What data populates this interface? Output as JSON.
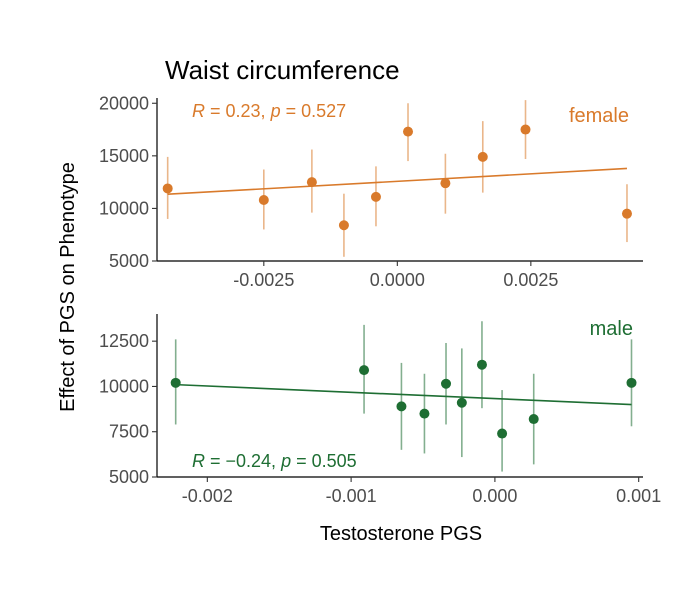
{
  "chart_data": {
    "type": "scatter",
    "title": "Waist circumference",
    "xlabel": "Testosterone PGS",
    "ylabel": "Effect of PGS on Phenotype",
    "panels": [
      {
        "name": "female",
        "color": "#d97a2b",
        "stat": {
          "r_prefix": "R",
          "r_text": " = 0.23, ",
          "p_prefix": "p",
          "p_text": " = 0.527"
        },
        "xlim": [
          -0.0045,
          0.0046
        ],
        "ylim": [
          5000,
          20500
        ],
        "xticks": [
          -0.0025,
          0.0,
          0.0025
        ],
        "xtick_labels": [
          "-0.0025",
          "0.0000",
          "0.0025"
        ],
        "yticks": [
          5000,
          10000,
          15000,
          20000
        ],
        "ytick_labels": [
          "5000",
          "10000",
          "15000",
          "20000"
        ],
        "points": [
          {
            "x": -0.0043,
            "y": 11900,
            "lo": 9000,
            "hi": 14900
          },
          {
            "x": -0.0025,
            "y": 10800,
            "lo": 8000,
            "hi": 13700
          },
          {
            "x": -0.0016,
            "y": 12500,
            "lo": 9600,
            "hi": 15600
          },
          {
            "x": -0.001,
            "y": 8400,
            "lo": 5400,
            "hi": 11400
          },
          {
            "x": -0.0004,
            "y": 11100,
            "lo": 8300,
            "hi": 14000
          },
          {
            "x": 0.0002,
            "y": 17300,
            "lo": 14500,
            "hi": 20000
          },
          {
            "x": 0.0009,
            "y": 12400,
            "lo": 9500,
            "hi": 15200
          },
          {
            "x": 0.0016,
            "y": 14900,
            "lo": 11500,
            "hi": 18300
          },
          {
            "x": 0.0024,
            "y": 17500,
            "lo": 14700,
            "hi": 20300
          },
          {
            "x": 0.0043,
            "y": 9500,
            "lo": 6800,
            "hi": 12300
          }
        ],
        "fit": {
          "x": [
            -0.0043,
            0.0043
          ],
          "y": [
            11350,
            13800
          ]
        }
      },
      {
        "name": "male",
        "color": "#1e6e33",
        "stat": {
          "r_prefix": "R",
          "r_text": " = −0.24, ",
          "p_prefix": "p",
          "p_text": " = 0.505"
        },
        "xlim": [
          -0.00235,
          0.00103
        ],
        "ylim": [
          5000,
          14000
        ],
        "xticks": [
          -0.002,
          -0.001,
          0.0,
          0.001
        ],
        "xtick_labels": [
          "-0.002",
          "-0.001",
          "0.000",
          "0.001"
        ],
        "yticks": [
          5000,
          7500,
          10000,
          12500
        ],
        "ytick_labels": [
          "5000",
          "7500",
          "10000",
          "12500"
        ],
        "points": [
          {
            "x": -0.00222,
            "y": 10200,
            "lo": 7900,
            "hi": 12600
          },
          {
            "x": -0.00091,
            "y": 10900,
            "lo": 8500,
            "hi": 13400
          },
          {
            "x": -0.00065,
            "y": 8900,
            "lo": 6500,
            "hi": 11300
          },
          {
            "x": -0.00049,
            "y": 8500,
            "lo": 6300,
            "hi": 10700
          },
          {
            "x": -0.00034,
            "y": 10150,
            "lo": 7900,
            "hi": 12400
          },
          {
            "x": -0.00023,
            "y": 9100,
            "lo": 6100,
            "hi": 12100
          },
          {
            "x": -9e-05,
            "y": 11200,
            "lo": 8800,
            "hi": 13600
          },
          {
            "x": 5e-05,
            "y": 7400,
            "lo": 5300,
            "hi": 9800
          },
          {
            "x": 0.00027,
            "y": 8200,
            "lo": 5700,
            "hi": 10700
          },
          {
            "x": 0.00095,
            "y": 10200,
            "lo": 7800,
            "hi": 12600
          }
        ],
        "fit": {
          "x": [
            -0.00222,
            0.00095
          ],
          "y": [
            10100,
            9000
          ]
        }
      }
    ]
  }
}
